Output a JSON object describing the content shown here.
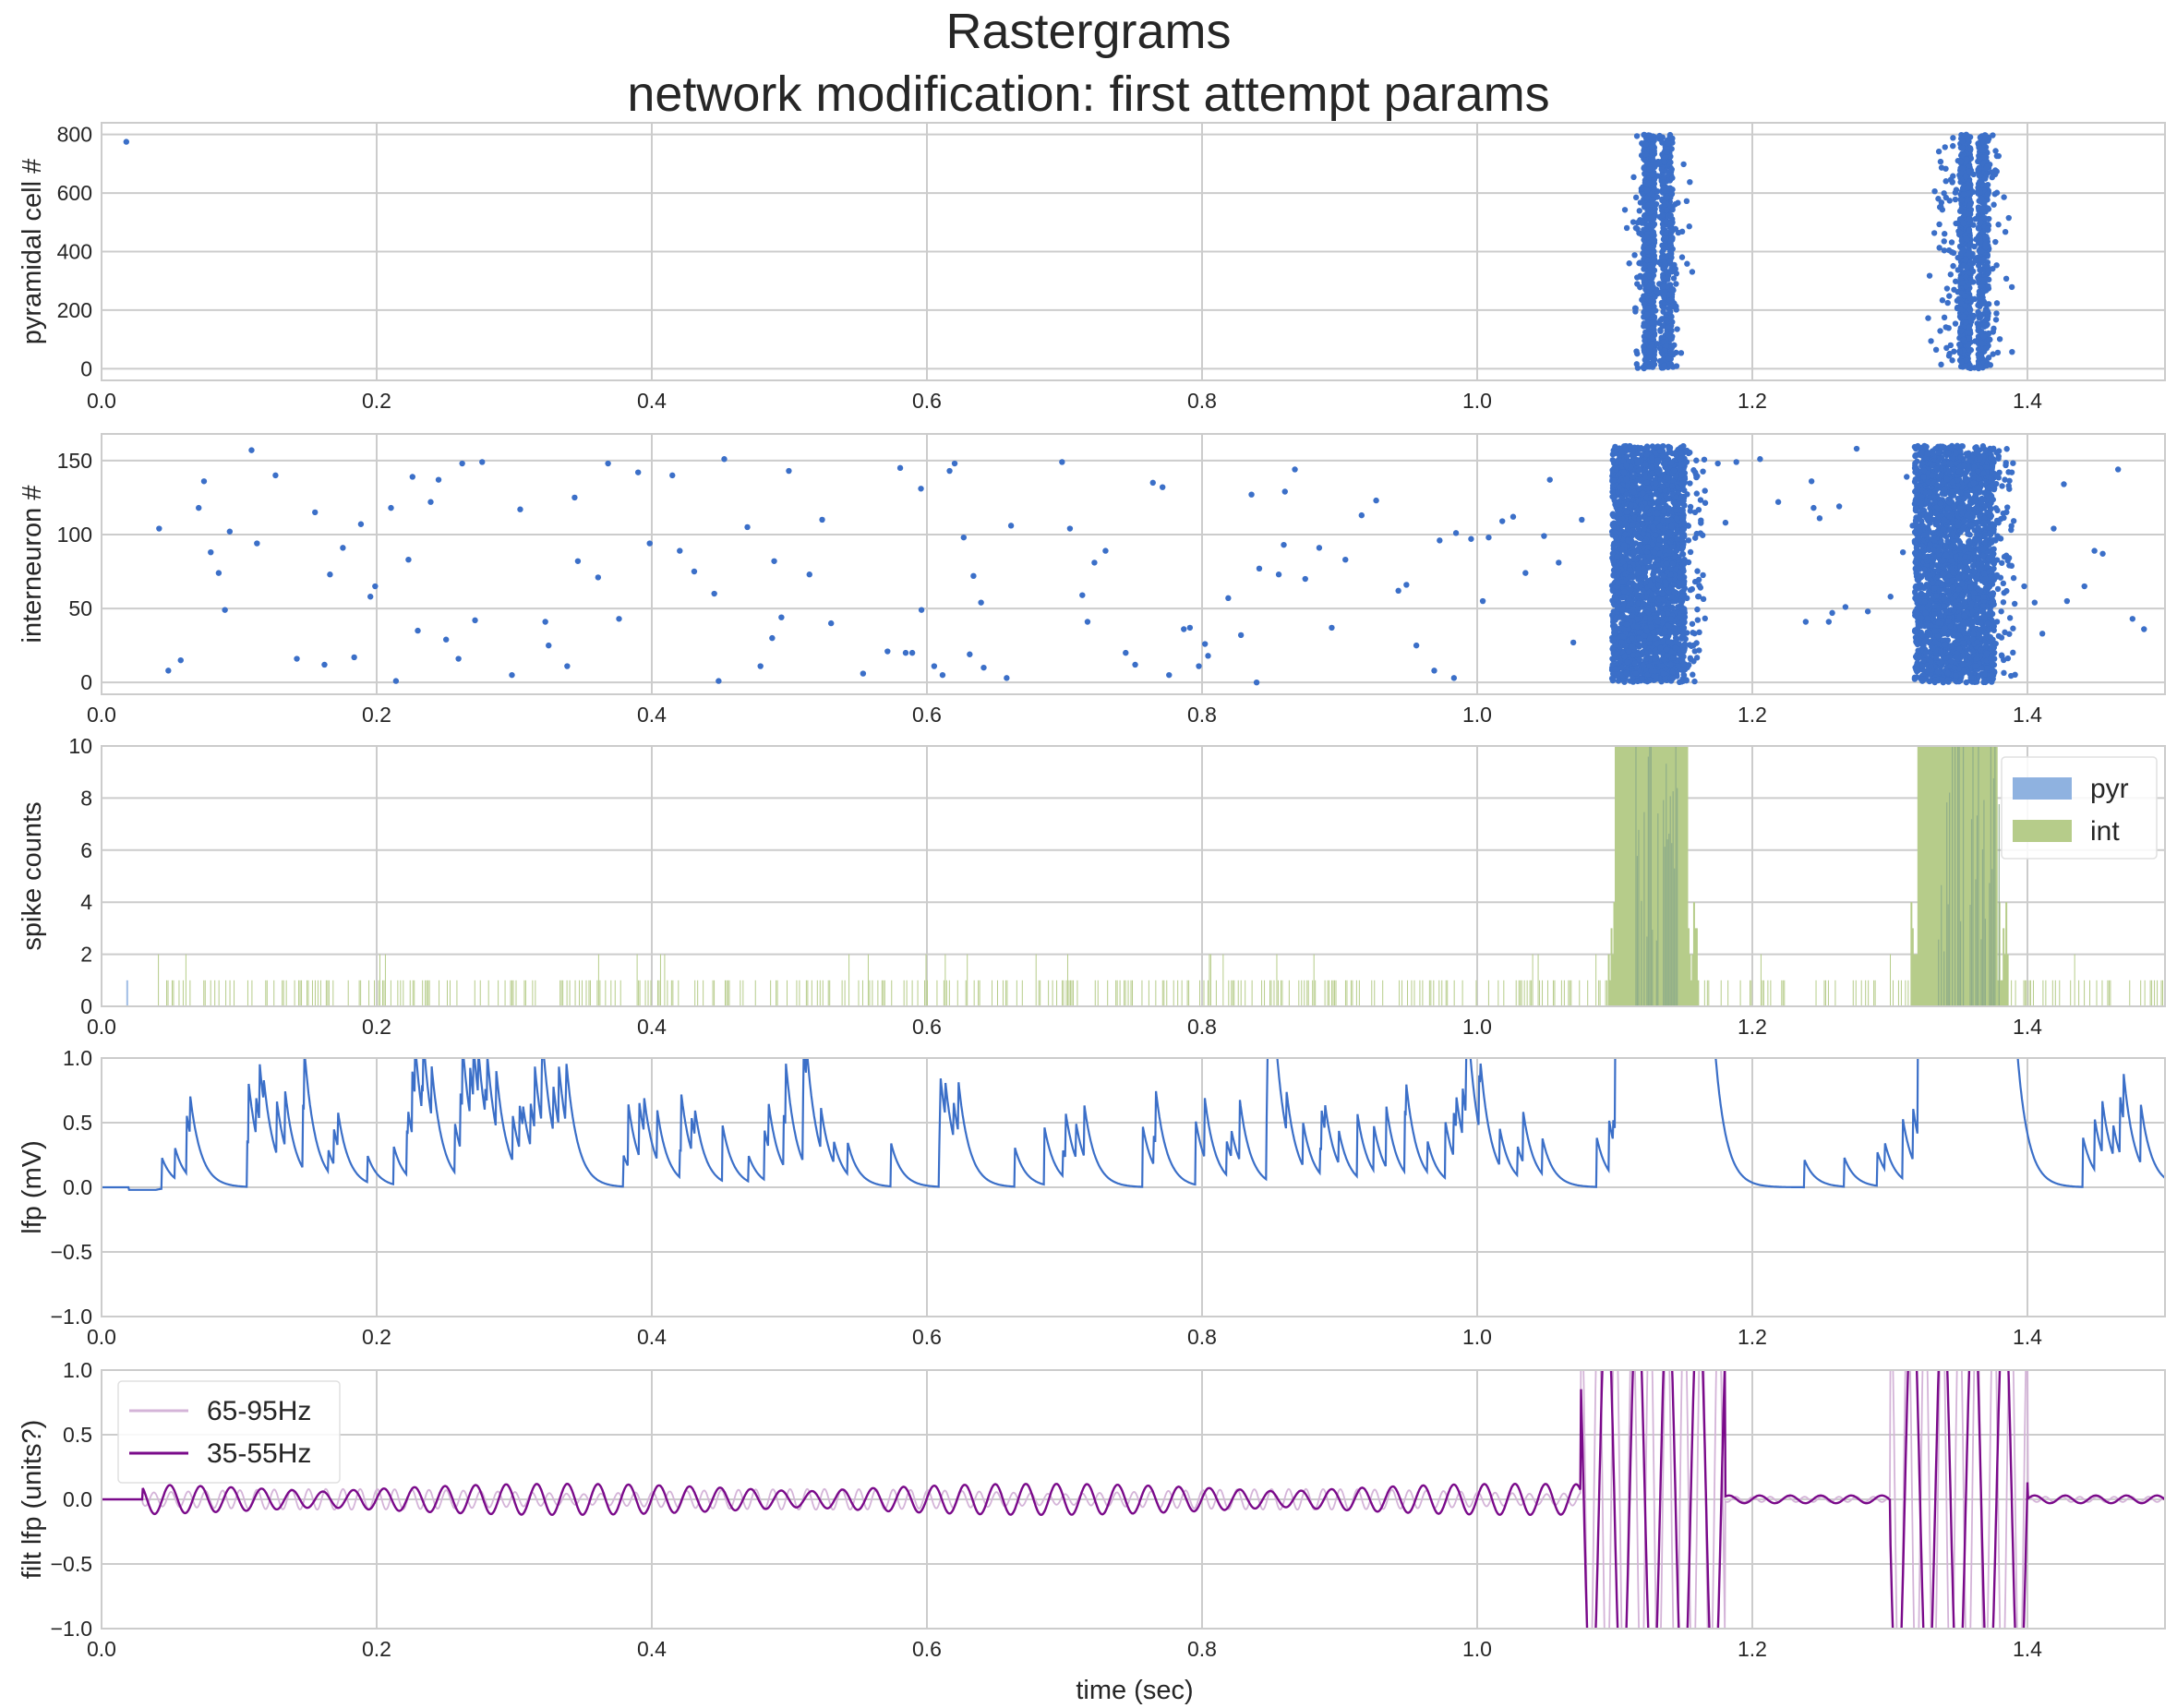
{
  "figure": {
    "title_line1": "Rastergrams",
    "title_line2": "network modification: first attempt params",
    "xlabel": "time (sec)"
  },
  "chart_data": [
    {
      "type": "scatter",
      "ylabel": "pyramidal cell #",
      "xlim": [
        0,
        1.5
      ],
      "ylim": [
        -40,
        840
      ],
      "xticks": [
        0.0,
        0.2,
        0.4,
        0.6,
        0.8,
        1.0,
        1.2,
        1.4
      ],
      "yticks": [
        0,
        200,
        400,
        600,
        800
      ],
      "color": "#3b6fc8",
      "isolated_points": [
        [
          0.018,
          775
        ]
      ],
      "bursts": [
        {
          "center": 1.125,
          "start": 1.115,
          "end": 1.145,
          "ymin": 0,
          "ymax": 800,
          "density": "dense"
        },
        {
          "center": 1.355,
          "start": 1.335,
          "end": 1.38,
          "ymin": 0,
          "ymax": 800,
          "density": "dense"
        }
      ]
    },
    {
      "type": "scatter",
      "ylabel": "interneuron #",
      "xlim": [
        0,
        1.5
      ],
      "ylim": [
        -8,
        168
      ],
      "xticks": [
        0.0,
        0.2,
        0.4,
        0.6,
        0.8,
        1.0,
        1.2,
        1.4
      ],
      "yticks": [
        0,
        50,
        100,
        150
      ],
      "color": "#3b6fc8",
      "background": "sparse random spikes across 0.04–1.5 s, roughly 2 per 10 ms",
      "bursts": [
        {
          "start": 1.095,
          "end": 1.16,
          "ymin": 0,
          "ymax": 160
        },
        {
          "start": 1.315,
          "end": 1.385,
          "ymin": 0,
          "ymax": 160
        }
      ]
    },
    {
      "type": "bar",
      "ylabel": "spike counts",
      "xlim": [
        0,
        1.5
      ],
      "ylim": [
        0,
        10
      ],
      "xticks": [
        0.0,
        0.2,
        0.4,
        0.6,
        0.8,
        1.0,
        1.2,
        1.4
      ],
      "yticks": [
        0,
        2,
        4,
        6,
        8,
        10
      ],
      "legend": {
        "placement": "top-right"
      },
      "series": [
        {
          "name": "pyr",
          "color": "#8fb2e0",
          "bursts": [
            {
              "start": 1.115,
              "end": 1.145
            },
            {
              "start": 1.335,
              "end": 1.38
            }
          ]
        },
        {
          "name": "int",
          "color": "#b6cc8a",
          "background_height": 1,
          "bursts": [
            {
              "start": 1.095,
              "end": 1.16
            },
            {
              "start": 1.315,
              "end": 1.385
            }
          ]
        }
      ]
    },
    {
      "type": "line",
      "ylabel": "lfp (mV)",
      "xlim": [
        0,
        1.5
      ],
      "ylim": [
        -1.0,
        1.0
      ],
      "xticks": [
        0.0,
        0.2,
        0.4,
        0.6,
        0.8,
        1.0,
        1.2,
        1.4
      ],
      "yticks": [
        -1.0,
        -0.5,
        0.0,
        0.5,
        1.0
      ],
      "color": "#3b6fc8",
      "description": "sawtooth-like positive transients around 0.1–0.7 mV, saturating above 1.0 during bursts at 1.10–1.17 s and 1.32–1.39 s"
    },
    {
      "type": "line",
      "ylabel": "filt lfp (units?)",
      "xlim": [
        0,
        1.5
      ],
      "ylim": [
        -1.0,
        1.0
      ],
      "xticks": [
        0.0,
        0.2,
        0.4,
        0.6,
        0.8,
        1.0,
        1.2,
        1.4
      ],
      "yticks": [
        -1.0,
        -0.5,
        0.0,
        0.5,
        1.0
      ],
      "legend": {
        "placement": "top-left"
      },
      "series": [
        {
          "name": "65-95Hz",
          "color": "#d4b4d8",
          "freq_hz": 80,
          "baseline_amp": 0.08
        },
        {
          "name": "35-55Hz",
          "color": "#7a0a8a",
          "freq_hz": 45,
          "baseline_amp": 0.12
        }
      ]
    }
  ],
  "colors": {
    "grid": "#cccccc",
    "spine": "#cccccc",
    "text": "#262626",
    "background": "#ffffff"
  }
}
